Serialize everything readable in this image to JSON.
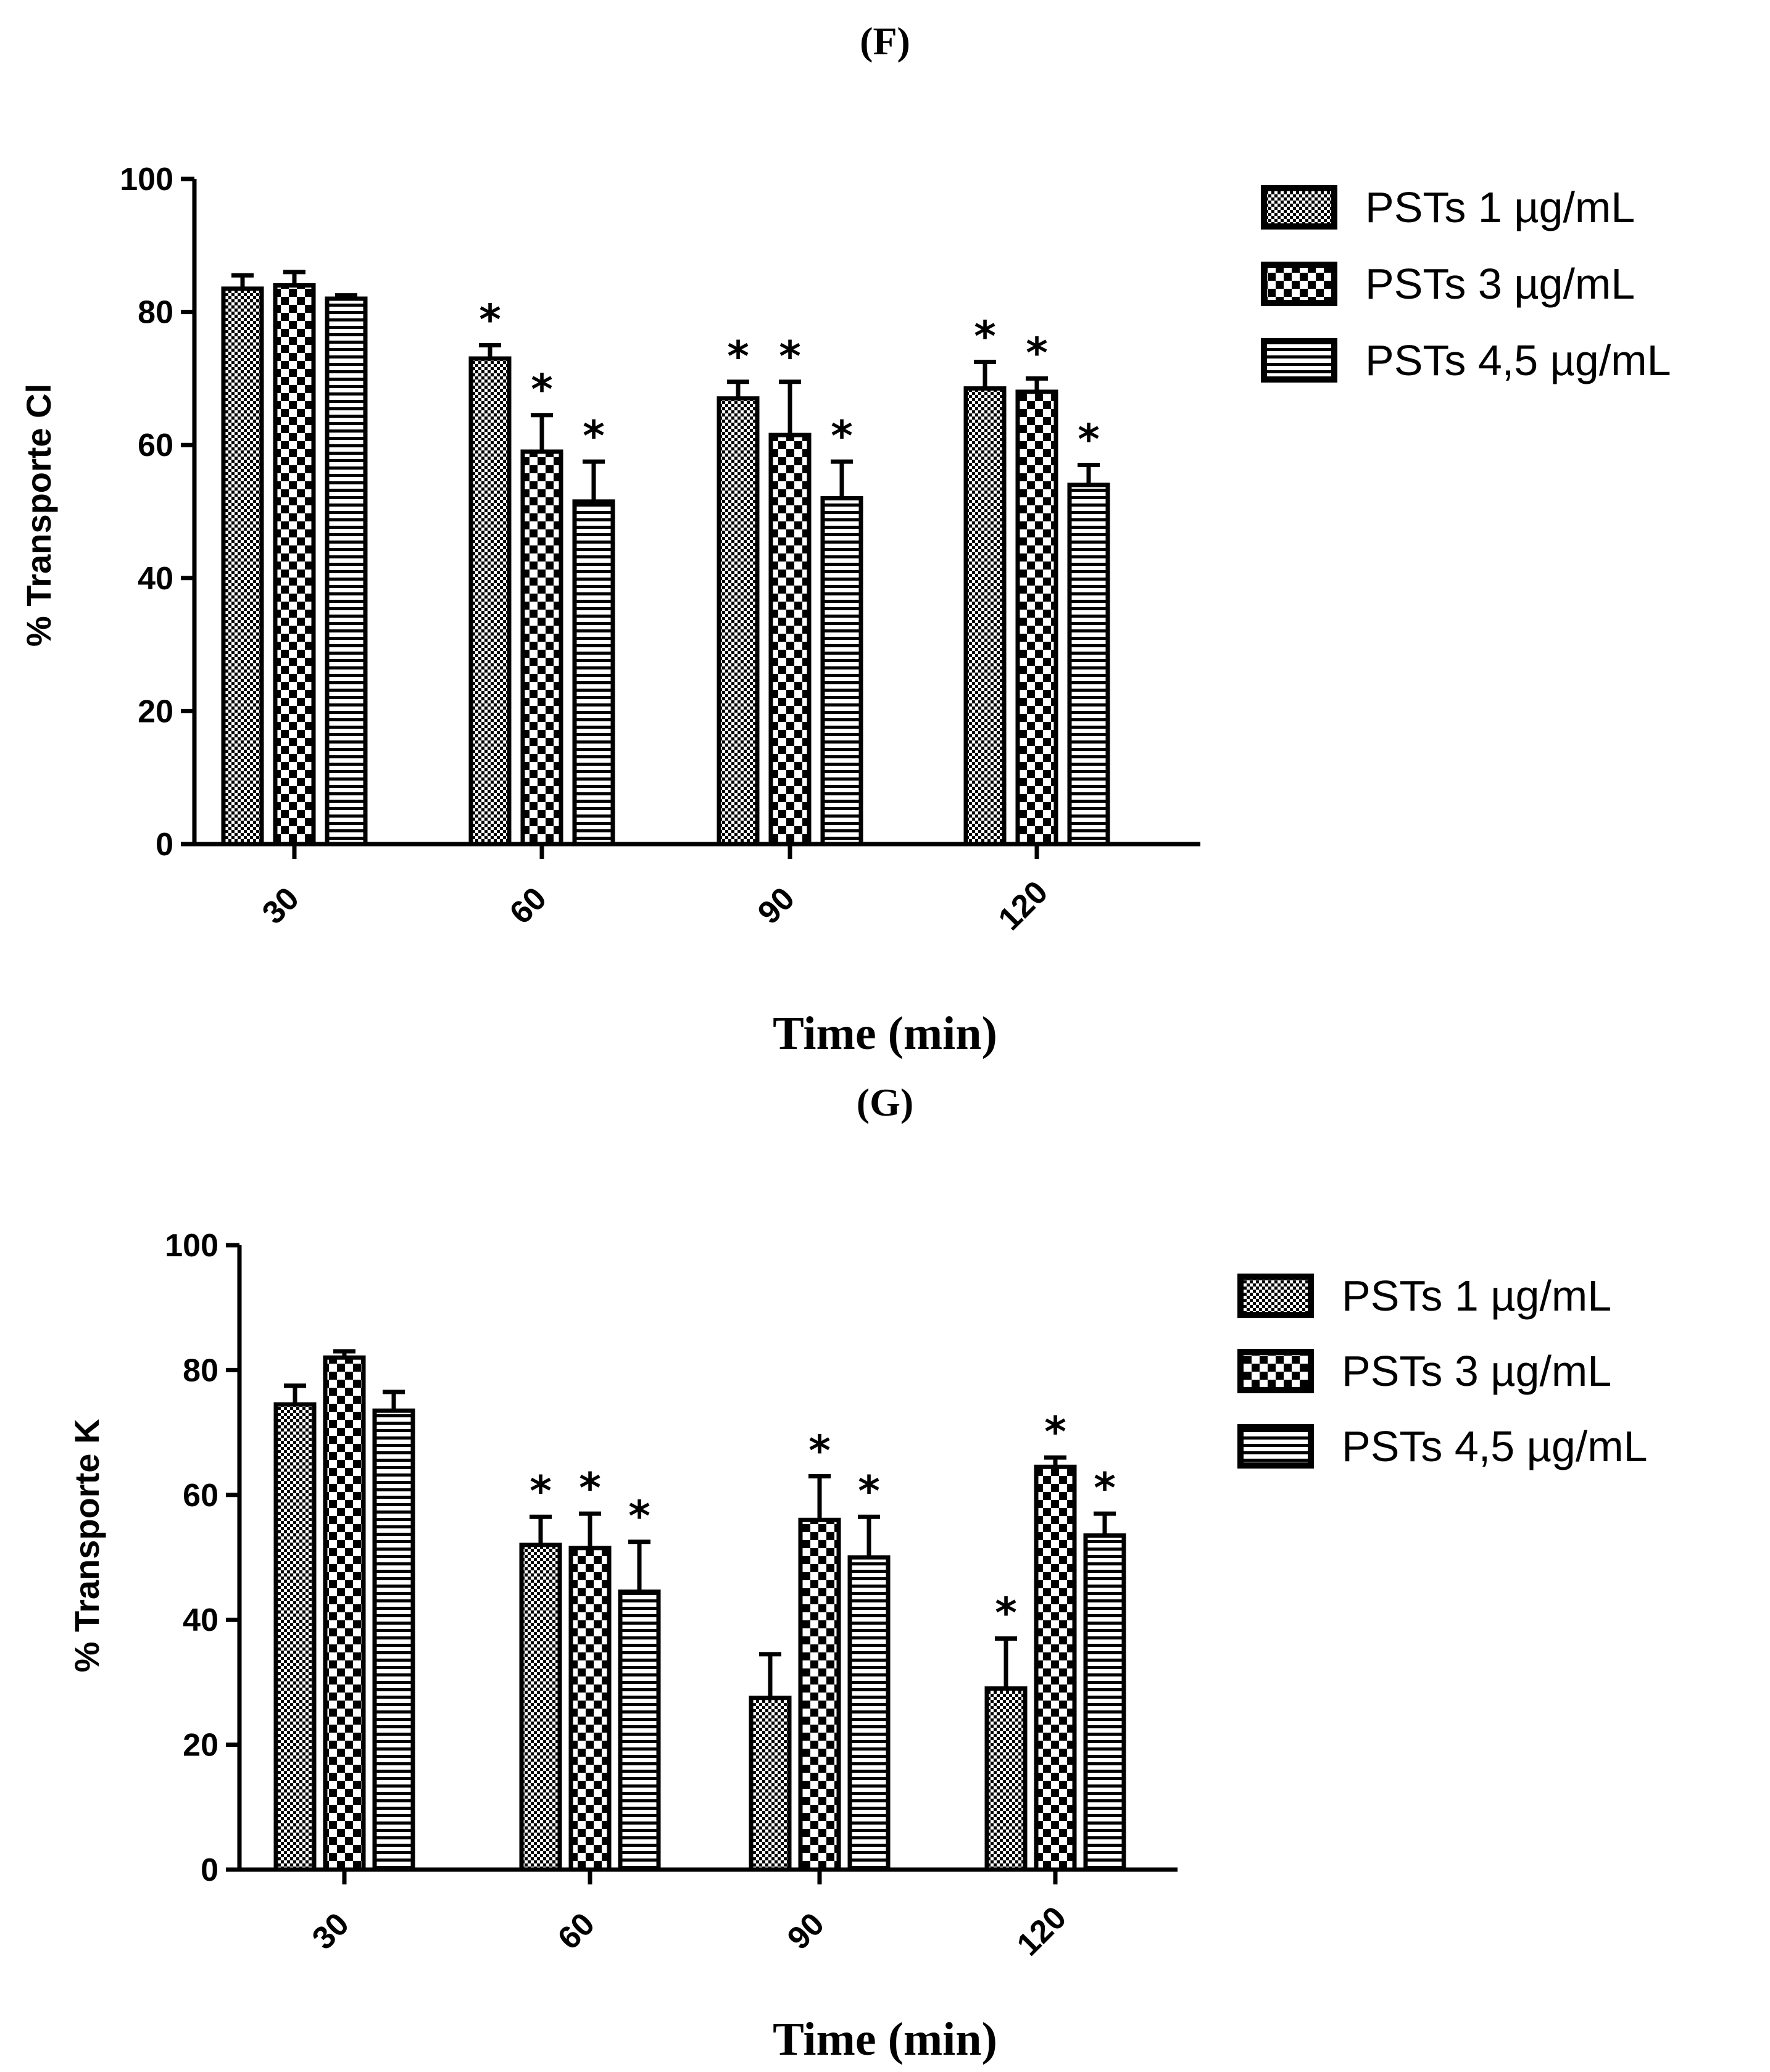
{
  "chart_data": [
    {
      "type": "bar",
      "panel_label": "(F)",
      "title": "",
      "xlabel": "Time (min)",
      "ylabel": "% Transporte Cl",
      "ylim": [
        0,
        100
      ],
      "yticks": [
        0,
        20,
        40,
        60,
        80,
        100
      ],
      "categories": [
        "30",
        "60",
        "90",
        "120"
      ],
      "legend_position": "top-right",
      "series": [
        {
          "name": "PSTs 1 µg/mL",
          "pattern": "fine-check",
          "values": [
            83.5,
            73,
            67,
            68.5
          ],
          "errors": [
            2,
            2,
            2.5,
            4
          ],
          "significant": [
            false,
            true,
            true,
            true
          ]
        },
        {
          "name": "PSTs 3 µg/mL",
          "pattern": "coarse-check",
          "values": [
            84,
            59,
            61.5,
            68
          ],
          "errors": [
            2,
            5.5,
            8,
            2
          ],
          "significant": [
            false,
            true,
            true,
            true
          ]
        },
        {
          "name": "PSTs 4,5 µg/mL",
          "pattern": "horizontal-stripes",
          "values": [
            82,
            51.5,
            52,
            54
          ],
          "errors": [
            0.5,
            6,
            5.5,
            3
          ],
          "significant": [
            false,
            true,
            true,
            true
          ]
        }
      ],
      "significance_marker": "*"
    },
    {
      "type": "bar",
      "panel_label": "(G)",
      "title": "",
      "xlabel": "Time (min)",
      "ylabel": "% Transporte K",
      "ylim": [
        0,
        100
      ],
      "yticks": [
        0,
        20,
        40,
        60,
        80,
        100
      ],
      "categories": [
        "30",
        "60",
        "90",
        "120"
      ],
      "legend_position": "top-right",
      "series": [
        {
          "name": "PSTs 1 µg/mL",
          "pattern": "fine-check",
          "values": [
            74.5,
            52,
            27.5,
            29
          ],
          "errors": [
            3,
            4.5,
            7,
            8
          ],
          "significant": [
            false,
            true,
            false,
            true
          ]
        },
        {
          "name": "PSTs 3 µg/mL",
          "pattern": "coarse-check",
          "values": [
            82,
            51.5,
            56,
            64.5
          ],
          "errors": [
            1,
            5.5,
            7,
            1.5
          ],
          "significant": [
            false,
            true,
            true,
            true
          ]
        },
        {
          "name": "PSTs 4,5 µg/mL",
          "pattern": "horizontal-stripes",
          "values": [
            73.5,
            44.5,
            50,
            53.5
          ],
          "errors": [
            3,
            8,
            6.5,
            3.5
          ],
          "significant": [
            false,
            true,
            true,
            true
          ]
        }
      ],
      "significance_marker": "*"
    }
  ]
}
